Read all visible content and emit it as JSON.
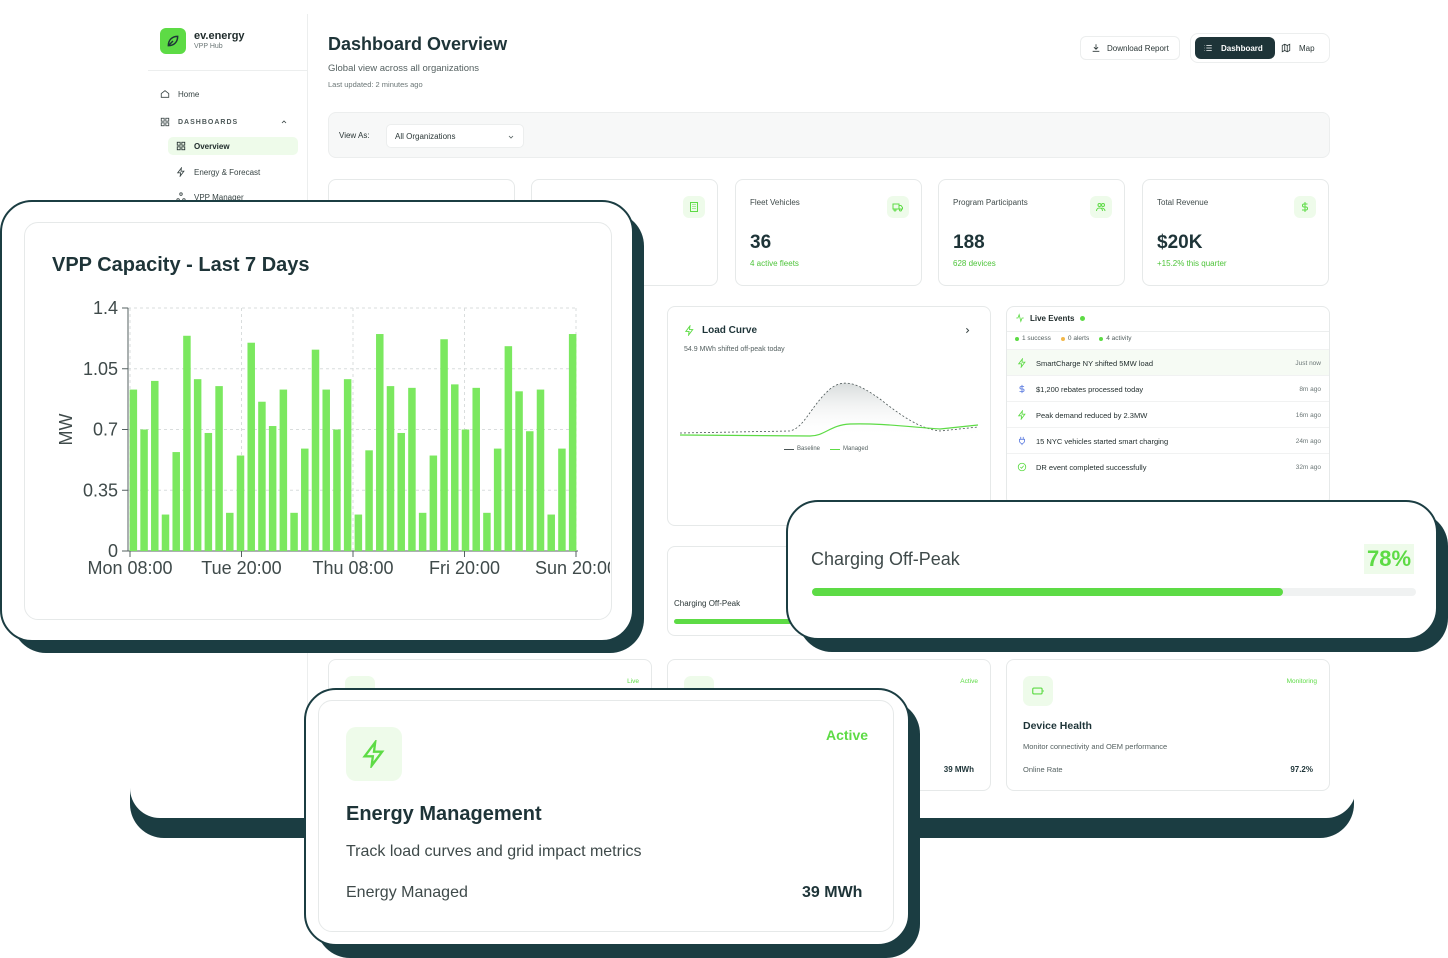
{
  "brand": {
    "name": "ev.energy",
    "subtitle": "VPP Hub"
  },
  "sidebar": {
    "home": "Home",
    "section": "DASHBOARDS",
    "items": [
      {
        "label": "Overview"
      },
      {
        "label": "Energy & Forecast"
      },
      {
        "label": "VPP Manager"
      }
    ]
  },
  "header": {
    "title": "Dashboard Overview",
    "subtitle": "Global view across all organizations",
    "updated": "Last updated: 2 minutes ago",
    "download": "Download Report",
    "dashboard": "Dashboard",
    "map": "Map"
  },
  "view_as": {
    "label": "View As:",
    "value": "All Organizations"
  },
  "stats": [
    {
      "label": "Fleet Vehicles",
      "value": "36",
      "sub": "4 active fleets",
      "icon": "truck-icon"
    },
    {
      "label": "Program Participants",
      "value": "188",
      "sub": "628 devices",
      "icon": "users-icon"
    },
    {
      "label": "Total Revenue",
      "value": "$20K",
      "sub": "+15.2% this quarter",
      "icon": "dollar-icon"
    }
  ],
  "load_curve": {
    "title": "Load Curve",
    "subtitle": "54.9 MWh shifted off-peak today",
    "legend_baseline": "Baseline",
    "legend_managed": "Managed"
  },
  "live_events": {
    "title": "Live Events",
    "success": "1 success",
    "alerts": "0 alerts",
    "activity": "4 activity",
    "rows": [
      {
        "text": "SmartCharge NY shifted 5MW load",
        "time": "Just now",
        "icon": "bolt-icon"
      },
      {
        "text": "$1,200 rebates processed today",
        "time": "8m ago",
        "icon": "dollar-icon"
      },
      {
        "text": "Peak demand reduced by 2.3MW",
        "time": "16m ago",
        "icon": "bolt-icon"
      },
      {
        "text": "15 NYC vehicles started smart charging",
        "time": "24m ago",
        "icon": "plug-icon"
      },
      {
        "text": "DR event completed successfully",
        "time": "32m ago",
        "icon": "check-circle-icon"
      }
    ]
  },
  "charging_partial": {
    "label": "Charging Off-Peak",
    "progress": 0.78
  },
  "mini_cards": [
    {
      "tag": "Live"
    },
    {
      "tag": "Active",
      "metric_value": "39 MWh"
    },
    {
      "tag": "Monitoring",
      "title": "Device Health",
      "desc": "Monitor connectivity and OEM performance",
      "metric_label": "Online Rate",
      "metric_value": "97.2%"
    }
  ],
  "vpp_chart": {
    "title": "VPP Capacity - Last 7 Days"
  },
  "chart_data": {
    "type": "bar",
    "title": "VPP Capacity - Last 7 Days",
    "ylabel": "MW",
    "xlabel": "",
    "ylim": [
      0,
      1.4
    ],
    "yticks": [
      "0",
      "0.35",
      "0.7",
      "1.05",
      "1.4"
    ],
    "xticks": [
      "Mon 08:00",
      "Tue 20:00",
      "Thu 08:00",
      "Fri 20:00",
      "Sun 20:00"
    ],
    "grid": true,
    "values": [
      0.93,
      0.7,
      0.98,
      0.21,
      0.57,
      1.24,
      0.99,
      0.68,
      0.95,
      0.22,
      0.55,
      1.2,
      0.86,
      0.72,
      0.93,
      0.22,
      0.59,
      1.16,
      0.93,
      0.7,
      0.99,
      0.21,
      0.58,
      1.25,
      0.95,
      0.68,
      0.94,
      0.22,
      0.55,
      1.22,
      0.96,
      0.7,
      0.94,
      0.22,
      0.59,
      1.18,
      0.92,
      0.69,
      0.93,
      0.21,
      0.59,
      1.25
    ]
  },
  "charging_float": {
    "label": "Charging Off-Peak",
    "percent": "78%",
    "progress": 0.78
  },
  "energy_float": {
    "tag": "Active",
    "title": "Energy Management",
    "desc": "Track load curves and grid impact metrics",
    "metric_label": "Energy Managed",
    "metric_value": "39 MWh",
    "icon": "bolt-icon"
  },
  "colors": {
    "accent": "#5ddb45",
    "dark": "#1b3d42"
  }
}
